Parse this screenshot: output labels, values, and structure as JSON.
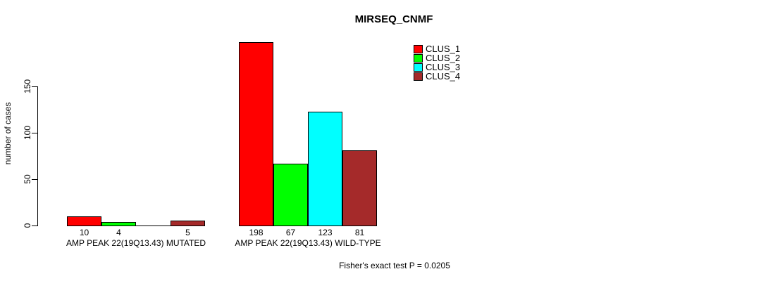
{
  "title": "MIRSEQ_CNMF",
  "y_axis_label": "number of cases",
  "footer_text": "Fisher's exact test P = 0.0205",
  "chart_data": {
    "type": "bar",
    "title": "MIRSEQ_CNMF",
    "xlabel": "",
    "ylabel": "number of cases",
    "categories": [
      "AMP PEAK 22(19Q13.43) MUTATED",
      "AMP PEAK 22(19Q13.43) WILD-TYPE"
    ],
    "series": [
      {
        "name": "CLUS_1",
        "color": "#ff0000",
        "values": [
          10,
          198
        ]
      },
      {
        "name": "CLUS_2",
        "color": "#00ff00",
        "values": [
          4,
          67
        ]
      },
      {
        "name": "CLUS_3",
        "color": "#00ffff",
        "values": [
          0,
          123
        ]
      },
      {
        "name": "CLUS_4",
        "color": "#a52a2a",
        "values": [
          5,
          81
        ]
      }
    ],
    "bar_value_labels": {
      "show": true,
      "hide_zero": true
    },
    "yticks": [
      0,
      50,
      100,
      150
    ],
    "ylim": [
      0,
      200
    ],
    "grid": false,
    "legend_position": "top-right",
    "annotation": "Fisher's exact test P = 0.0205"
  },
  "colors": {
    "background": "#ffffff",
    "axis": "#000000",
    "bar_border": "#000000",
    "text": "#000000"
  }
}
